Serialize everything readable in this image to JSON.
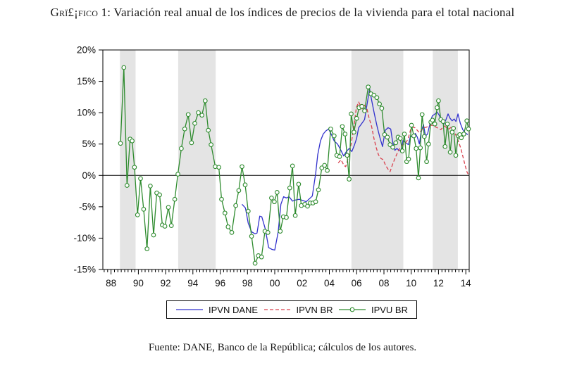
{
  "title": {
    "prefix": "Grï£¡fico 1:",
    "rest": "Variación real anual de los índices de precios de la vivienda para el total nacional"
  },
  "footer": "Fuente: DANE, Banco de la República; cálculos de los autores.",
  "colors": {
    "band": "#e4e4e4",
    "frame": "#000000",
    "blue": "#3232cd",
    "red": "#d9404d",
    "green": "#2e8b2e",
    "marker_fill": "#ffffff"
  },
  "chart_data": {
    "type": "line",
    "title": "Variación real anual de los índices de precios de la vivienda para el total nacional",
    "xlabel": "",
    "ylabel": "",
    "grid": false,
    "zero_line": true,
    "legend_position": "bottom-center",
    "x_axis": {
      "range": [
        1987.4,
        2014.25
      ],
      "label_years": [
        1988,
        1990,
        1992,
        1994,
        1996,
        1998,
        2000,
        2002,
        2004,
        2006,
        2008,
        2010,
        2012,
        2014
      ],
      "labels": [
        "88",
        "90",
        "92",
        "94",
        "96",
        "98",
        "00",
        "02",
        "04",
        "06",
        "08",
        "10",
        "12",
        "14"
      ],
      "minor_tick_step": 0.25
    },
    "y_axis": {
      "range": [
        -15,
        20
      ],
      "ticks": [
        20,
        15,
        10,
        5,
        0,
        -5,
        -10,
        -15
      ],
      "labels": [
        "20%",
        "15%",
        "10%",
        "5%",
        "0%",
        "-5%",
        "-10%",
        "-15%"
      ]
    },
    "recession_bands": [
      [
        1988.65,
        1989.8
      ],
      [
        1992.92,
        1995.67
      ],
      [
        2005.62,
        2009.42
      ],
      [
        2011.58,
        2013.42
      ]
    ],
    "series": [
      {
        "name": "IPVN DANE",
        "color": "#3232cd",
        "style": "solid",
        "markers": false,
        "points": [
          [
            1997.6,
            -4.6
          ],
          [
            1997.85,
            -5.2
          ],
          [
            1998.05,
            -7.6
          ],
          [
            1998.3,
            -9.0
          ],
          [
            1998.55,
            -9.3
          ],
          [
            1998.7,
            -9.2
          ],
          [
            1998.9,
            -6.5
          ],
          [
            1999.05,
            -6.6
          ],
          [
            1999.3,
            -8.5
          ],
          [
            1999.55,
            -11.5
          ],
          [
            1999.8,
            -11.8
          ],
          [
            2000.0,
            -11.9
          ],
          [
            2000.25,
            -9.0
          ],
          [
            2000.45,
            -4.6
          ],
          [
            2000.65,
            -3.4
          ],
          [
            2000.85,
            -3.6
          ],
          [
            2001.05,
            -3.4
          ],
          [
            2001.3,
            -4.1
          ],
          [
            2001.55,
            -3.9
          ],
          [
            2001.8,
            -3.8
          ],
          [
            2002.05,
            -4.0
          ],
          [
            2002.3,
            -4.2
          ],
          [
            2002.5,
            -3.8
          ],
          [
            2002.75,
            -3.3
          ],
          [
            2003.0,
            0.3
          ],
          [
            2003.15,
            3.3
          ],
          [
            2003.35,
            5.5
          ],
          [
            2003.55,
            6.6
          ],
          [
            2003.75,
            7.1
          ],
          [
            2003.95,
            7.4
          ],
          [
            2004.15,
            6.5
          ],
          [
            2004.35,
            5.5
          ],
          [
            2004.6,
            5.0
          ],
          [
            2004.8,
            4.2
          ],
          [
            2005.05,
            3.1
          ],
          [
            2005.25,
            3.8
          ],
          [
            2005.45,
            4.3
          ],
          [
            2005.65,
            3.8
          ],
          [
            2005.85,
            4.9
          ],
          [
            2006.0,
            5.9
          ],
          [
            2006.15,
            7.6
          ],
          [
            2006.35,
            8.2
          ],
          [
            2006.58,
            8.9
          ],
          [
            2006.75,
            11.1
          ],
          [
            2006.95,
            13.8
          ],
          [
            2007.1,
            12.0
          ],
          [
            2007.3,
            9.8
          ],
          [
            2007.5,
            7.8
          ],
          [
            2007.7,
            6.1
          ],
          [
            2007.9,
            4.6
          ],
          [
            2008.1,
            7.2
          ],
          [
            2008.3,
            7.6
          ],
          [
            2008.5,
            7.4
          ],
          [
            2008.65,
            5.2
          ],
          [
            2008.8,
            4.0
          ],
          [
            2008.95,
            4.3
          ],
          [
            2009.1,
            4.0
          ],
          [
            2009.25,
            3.9
          ],
          [
            2009.4,
            5.6
          ],
          [
            2009.6,
            5.2
          ],
          [
            2009.8,
            4.9
          ],
          [
            2009.95,
            6.3
          ],
          [
            2010.1,
            6.1
          ],
          [
            2010.3,
            6.7
          ],
          [
            2010.45,
            6.1
          ],
          [
            2010.6,
            5.0
          ],
          [
            2010.72,
            6.8
          ],
          [
            2010.9,
            8.1
          ],
          [
            2011.05,
            6.3
          ],
          [
            2011.2,
            6.6
          ],
          [
            2011.4,
            8.5
          ],
          [
            2011.55,
            9.5
          ],
          [
            2011.75,
            9.8
          ],
          [
            2011.9,
            10.1
          ],
          [
            2012.05,
            9.6
          ],
          [
            2012.25,
            8.7
          ],
          [
            2012.4,
            8.2
          ],
          [
            2012.55,
            8.9
          ],
          [
            2012.7,
            9.8
          ],
          [
            2012.85,
            9.1
          ],
          [
            2013.0,
            8.7
          ],
          [
            2013.15,
            9.0
          ],
          [
            2013.28,
            8.6
          ],
          [
            2013.43,
            9.8
          ],
          [
            2013.6,
            8.3
          ],
          [
            2013.78,
            7.3
          ],
          [
            2013.95,
            6.8
          ],
          [
            2014.15,
            6.5
          ]
        ]
      },
      {
        "name": "IPVN BR",
        "color": "#d9404d",
        "style": "dashed",
        "markers": false,
        "points": [
          [
            2004.65,
            2.0
          ],
          [
            2004.86,
            2.5
          ],
          [
            2005.07,
            1.6
          ],
          [
            2005.2,
            1.4
          ],
          [
            2005.46,
            3.3
          ],
          [
            2005.63,
            5.5
          ],
          [
            2005.8,
            7.8
          ],
          [
            2005.98,
            10.8
          ],
          [
            2006.15,
            11.7
          ],
          [
            2006.4,
            10.6
          ],
          [
            2006.58,
            11.2
          ],
          [
            2006.75,
            10.7
          ],
          [
            2006.92,
            9.1
          ],
          [
            2007.1,
            7.8
          ],
          [
            2007.27,
            5.9
          ],
          [
            2007.44,
            4.4
          ],
          [
            2007.6,
            3.3
          ],
          [
            2007.78,
            2.7
          ],
          [
            2007.95,
            2.5
          ],
          [
            2008.12,
            1.6
          ],
          [
            2008.3,
            1.0
          ],
          [
            2008.45,
            0.6
          ],
          [
            2008.64,
            1.8
          ],
          [
            2008.81,
            2.7
          ],
          [
            2009.07,
            4.0
          ],
          [
            2009.24,
            4.5
          ],
          [
            2009.4,
            4.9
          ],
          [
            2009.6,
            5.2
          ],
          [
            2009.77,
            5.8
          ],
          [
            2009.97,
            7.4
          ],
          [
            2010.1,
            7.7
          ],
          [
            2010.27,
            7.6
          ],
          [
            2010.44,
            7.2
          ],
          [
            2010.6,
            6.8
          ],
          [
            2010.79,
            7.3
          ],
          [
            2010.96,
            7.6
          ],
          [
            2011.13,
            7.7
          ],
          [
            2011.3,
            7.9
          ],
          [
            2011.47,
            8.0
          ],
          [
            2011.64,
            7.9
          ],
          [
            2011.81,
            7.7
          ],
          [
            2012.0,
            7.5
          ],
          [
            2012.17,
            7.3
          ],
          [
            2012.42,
            7.9
          ],
          [
            2012.6,
            7.6
          ],
          [
            2012.77,
            7.4
          ],
          [
            2012.95,
            7.7
          ],
          [
            2013.13,
            7.0
          ],
          [
            2013.3,
            6.3
          ],
          [
            2013.5,
            5.2
          ],
          [
            2013.65,
            4.2
          ],
          [
            2013.8,
            2.9
          ],
          [
            2013.95,
            1.6
          ],
          [
            2014.08,
            0.6
          ],
          [
            2014.17,
            0.2
          ]
        ]
      },
      {
        "name": "IPVU BR",
        "color": "#2e8b2e",
        "style": "solid",
        "markers": true,
        "points": [
          [
            1988.69,
            5.1
          ],
          [
            1988.94,
            17.2
          ],
          [
            1989.17,
            -1.6
          ],
          [
            1989.4,
            5.8
          ],
          [
            1989.55,
            5.5
          ],
          [
            1989.72,
            1.3
          ],
          [
            1989.94,
            -6.3
          ],
          [
            1990.16,
            -0.5
          ],
          [
            1990.39,
            -5.4
          ],
          [
            1990.64,
            -11.7
          ],
          [
            1990.88,
            -1.7
          ],
          [
            1991.12,
            -9.5
          ],
          [
            1991.35,
            -2.8
          ],
          [
            1991.56,
            -3.1
          ],
          [
            1991.76,
            -7.9
          ],
          [
            1991.95,
            -8.1
          ],
          [
            1992.2,
            -5.1
          ],
          [
            1992.42,
            -8.0
          ],
          [
            1992.67,
            -3.8
          ],
          [
            1992.9,
            0.2
          ],
          [
            1993.15,
            4.3
          ],
          [
            1993.4,
            7.4
          ],
          [
            1993.66,
            9.7
          ],
          [
            1993.9,
            5.2
          ],
          [
            1994.14,
            8.3
          ],
          [
            1994.4,
            10.0
          ],
          [
            1994.66,
            9.6
          ],
          [
            1994.9,
            11.9
          ],
          [
            1995.13,
            7.2
          ],
          [
            1995.33,
            4.9
          ],
          [
            1995.64,
            1.4
          ],
          [
            1995.9,
            1.3
          ],
          [
            1996.1,
            -3.8
          ],
          [
            1996.35,
            -6.0
          ],
          [
            1996.58,
            -8.2
          ],
          [
            1996.85,
            -9.1
          ],
          [
            1997.14,
            -4.8
          ],
          [
            1997.36,
            -2.4
          ],
          [
            1997.6,
            1.4
          ],
          [
            1997.83,
            -1.5
          ],
          [
            1998.05,
            -5.7
          ],
          [
            1998.3,
            -9.7
          ],
          [
            1998.56,
            -14.0
          ],
          [
            1998.8,
            -12.8
          ],
          [
            1999.03,
            -13.0
          ],
          [
            1999.28,
            -8.9
          ],
          [
            1999.5,
            -9.1
          ],
          [
            1999.76,
            -3.6
          ],
          [
            1999.97,
            -4.2
          ],
          [
            2000.17,
            -2.7
          ],
          [
            2000.4,
            -8.9
          ],
          [
            2000.63,
            -6.6
          ],
          [
            2000.85,
            -6.7
          ],
          [
            2001.1,
            -2.0
          ],
          [
            2001.3,
            1.5
          ],
          [
            2001.5,
            -6.4
          ],
          [
            2001.75,
            -1.4
          ],
          [
            2001.95,
            -4.8
          ],
          [
            2002.2,
            -4.6
          ],
          [
            2002.4,
            -4.9
          ],
          [
            2002.6,
            -4.4
          ],
          [
            2002.8,
            -4.4
          ],
          [
            2003.0,
            -4.2
          ],
          [
            2003.2,
            -2.3
          ],
          [
            2003.45,
            1.2
          ],
          [
            2003.65,
            1.6
          ],
          [
            2003.85,
            0.8
          ],
          [
            2004.1,
            7.4
          ],
          [
            2004.35,
            6.3
          ],
          [
            2004.55,
            3.2
          ],
          [
            2004.75,
            3.0
          ],
          [
            2004.95,
            7.8
          ],
          [
            2005.15,
            6.6
          ],
          [
            2005.3,
            3.2
          ],
          [
            2005.45,
            -0.6
          ],
          [
            2005.6,
            9.8
          ],
          [
            2005.8,
            6.9
          ],
          [
            2006.0,
            9.1
          ],
          [
            2006.18,
            10.8
          ],
          [
            2006.38,
            11.0
          ],
          [
            2006.58,
            10.3
          ],
          [
            2006.85,
            14.1
          ],
          [
            2007.05,
            13.0
          ],
          [
            2007.27,
            12.8
          ],
          [
            2007.48,
            12.4
          ],
          [
            2007.67,
            11.4
          ],
          [
            2007.84,
            10.7
          ],
          [
            2008.05,
            6.5
          ],
          [
            2008.25,
            6.1
          ],
          [
            2008.45,
            4.9
          ],
          [
            2008.65,
            4.5
          ],
          [
            2008.87,
            5.2
          ],
          [
            2009.04,
            6.1
          ],
          [
            2009.2,
            5.9
          ],
          [
            2009.35,
            3.9
          ],
          [
            2009.5,
            6.6
          ],
          [
            2009.67,
            2.2
          ],
          [
            2009.81,
            2.6
          ],
          [
            2010.02,
            8.0
          ],
          [
            2010.19,
            6.3
          ],
          [
            2010.36,
            4.3
          ],
          [
            2010.53,
            -0.4
          ],
          [
            2010.67,
            4.4
          ],
          [
            2010.8,
            9.7
          ],
          [
            2010.96,
            6.2
          ],
          [
            2011.13,
            2.2
          ],
          [
            2011.27,
            5.0
          ],
          [
            2011.44,
            8.5
          ],
          [
            2011.56,
            8.8
          ],
          [
            2011.73,
            8.2
          ],
          [
            2011.9,
            10.8
          ],
          [
            2012.0,
            11.9
          ],
          [
            2012.17,
            8.9
          ],
          [
            2012.34,
            8.6
          ],
          [
            2012.48,
            4.6
          ],
          [
            2012.65,
            8.2
          ],
          [
            2012.86,
            3.7
          ],
          [
            2013.0,
            6.9
          ],
          [
            2013.1,
            7.5
          ],
          [
            2013.27,
            3.2
          ],
          [
            2013.45,
            6.3
          ],
          [
            2013.56,
            6.5
          ],
          [
            2013.67,
            6.0
          ],
          [
            2013.86,
            6.6
          ],
          [
            2014.08,
            8.7
          ],
          [
            2014.2,
            7.4
          ]
        ]
      }
    ]
  }
}
